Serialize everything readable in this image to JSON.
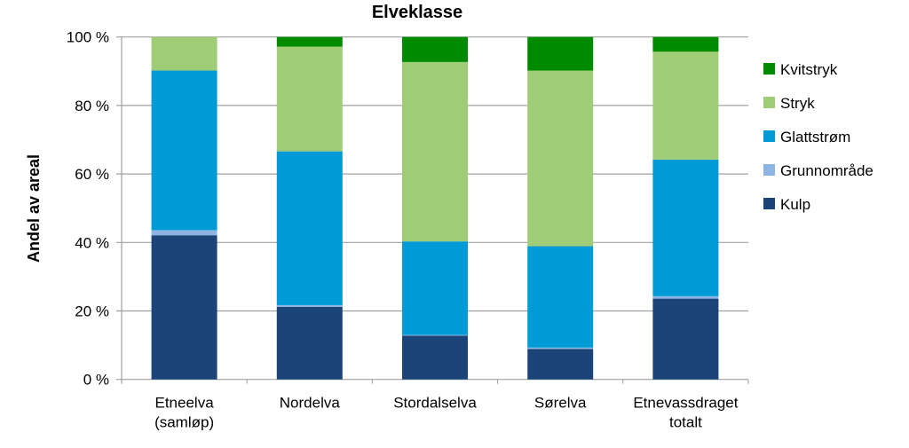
{
  "chart_data": {
    "type": "bar",
    "stacked": true,
    "title": "Elveklasse",
    "xlabel": "",
    "ylabel": "Andel av areal",
    "ylim": [
      0,
      100
    ],
    "yticks": [
      "0 %",
      "20 %",
      "40 %",
      "60 %",
      "80 %",
      "100 %"
    ],
    "grid": true,
    "legend": "right",
    "categories": [
      [
        "Etneelva",
        "(samløp)"
      ],
      [
        "Nordelva"
      ],
      [
        "Stordalselva"
      ],
      [
        "Sørelva"
      ],
      [
        "Etnevassdraget",
        "totalt"
      ]
    ],
    "series": [
      {
        "name": "Kulp",
        "color": "#1b4479",
        "values": [
          42.1,
          21.2,
          12.8,
          8.9,
          23.6
        ]
      },
      {
        "name": "Grunnområde",
        "color": "#8db4e2",
        "values": [
          1.5,
          0.5,
          0.2,
          0.4,
          0.7
        ]
      },
      {
        "name": "Glattstrøm",
        "color": "#009bd6",
        "values": [
          46.6,
          44.9,
          27.3,
          29.6,
          39.9
        ]
      },
      {
        "name": "Stryk",
        "color": "#a0cc78",
        "values": [
          9.8,
          30.6,
          52.4,
          51.3,
          31.5
        ]
      },
      {
        "name": "Kvitstryk",
        "color": "#008a00",
        "values": [
          0,
          2.8,
          7.3,
          9.8,
          4.3
        ]
      }
    ]
  }
}
